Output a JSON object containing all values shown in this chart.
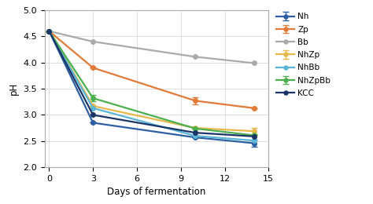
{
  "series": [
    {
      "label": "Nh",
      "color": "#2e5fa3",
      "x": [
        0,
        3,
        10,
        14
      ],
      "y": [
        4.6,
        2.85,
        2.57,
        2.46
      ],
      "yerr": [
        null,
        null,
        null,
        0.06
      ]
    },
    {
      "label": "Zp",
      "color": "#e07b39",
      "x": [
        0,
        3,
        10,
        14
      ],
      "y": [
        4.6,
        3.9,
        3.27,
        3.13
      ],
      "yerr": [
        null,
        null,
        0.07,
        null
      ]
    },
    {
      "label": "Bb",
      "color": "#aaaaaa",
      "x": [
        0,
        3,
        10,
        14
      ],
      "y": [
        4.6,
        4.4,
        4.11,
        3.99
      ],
      "yerr": [
        null,
        null,
        null,
        null
      ]
    },
    {
      "label": "NhZp",
      "color": "#e8b84b",
      "x": [
        0,
        3,
        10,
        14
      ],
      "y": [
        4.6,
        3.17,
        2.75,
        2.69
      ],
      "yerr": [
        null,
        null,
        null,
        0.06
      ]
    },
    {
      "label": "NhBb",
      "color": "#5ab4d6",
      "x": [
        0,
        3,
        10,
        14
      ],
      "y": [
        4.6,
        3.13,
        2.6,
        2.51
      ],
      "yerr": [
        null,
        null,
        null,
        null
      ]
    },
    {
      "label": "NhZpBb",
      "color": "#4caf50",
      "x": [
        0,
        3,
        10,
        14
      ],
      "y": [
        4.6,
        3.32,
        2.74,
        2.61
      ],
      "yerr": [
        null,
        0.06,
        null,
        null
      ]
    },
    {
      "label": "KCC",
      "color": "#1a3568",
      "x": [
        0,
        3,
        10,
        14
      ],
      "y": [
        4.6,
        3.0,
        2.66,
        2.59
      ],
      "yerr": [
        null,
        null,
        null,
        null
      ]
    }
  ],
  "xlabel": "Days of fermentation",
  "ylabel": "pH",
  "xlim": [
    -0.3,
    15
  ],
  "ylim": [
    2.0,
    5.0
  ],
  "xticks": [
    0,
    3,
    6,
    9,
    12,
    15
  ],
  "yticks": [
    2.0,
    2.5,
    3.0,
    3.5,
    4.0,
    4.5,
    5.0
  ],
  "grid": true,
  "background_color": "#ffffff",
  "marker": "o",
  "markersize": 4,
  "linewidth": 1.6
}
